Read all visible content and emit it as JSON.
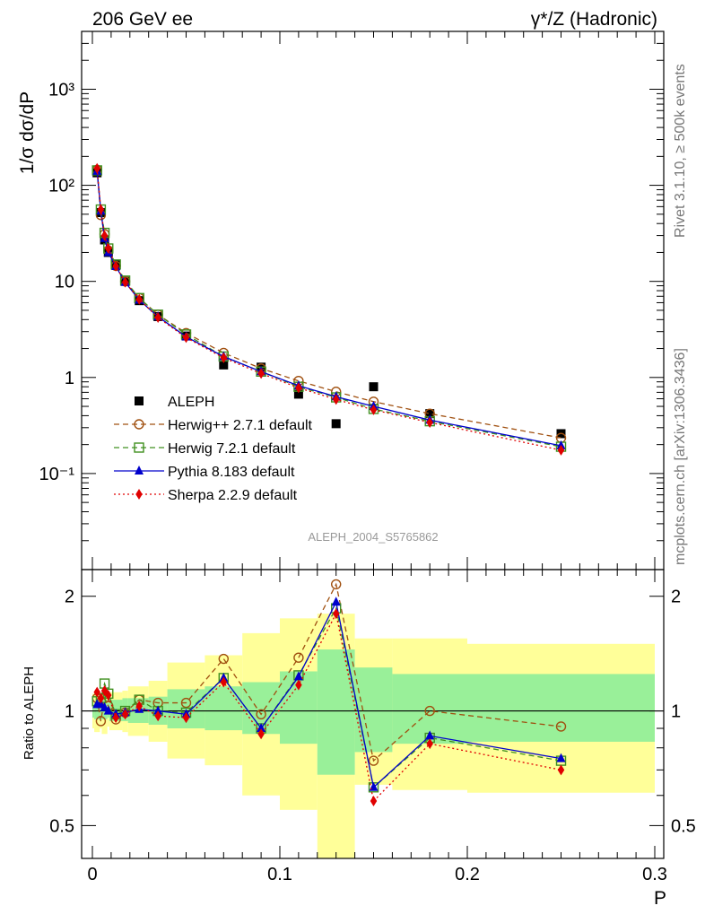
{
  "header": {
    "left": "206 GeV ee",
    "right": "γ*/Z (Hadronic)"
  },
  "side_labels": {
    "rivet": "Rivet 3.1.10, ≥ 500k events",
    "mcplots": "mcplots.cern.ch [arXiv:1306.3436]"
  },
  "analysis_id": "ALEPH_2004_S5765862",
  "chart_data": [
    {
      "type": "scatter",
      "ylabel": "1/σ  dσ/dP",
      "yscale": "log",
      "ylim": [
        0.01,
        4000
      ],
      "xlim": [
        -0.005,
        0.3
      ],
      "ytick_labels": [
        "10⁻¹",
        "1",
        "10",
        "10²",
        "10³"
      ],
      "legend_position": "center-left",
      "x": [
        0.0025,
        0.0045,
        0.0065,
        0.0085,
        0.0125,
        0.0175,
        0.025,
        0.035,
        0.05,
        0.07,
        0.09,
        0.11,
        0.13,
        0.15,
        0.18,
        0.25
      ],
      "series": [
        {
          "name": "ALEPH",
          "color": "#000000",
          "marker": "square",
          "values": [
            135,
            52,
            27,
            20,
            15,
            10,
            6.3,
            4.3,
            2.7,
            1.35,
            1.28,
            0.67,
            0.33,
            0.8,
            0.42,
            0.26
          ]
        },
        {
          "name": "Herwig++ 2.7.1 default",
          "color": "#a05010",
          "marker": "circle-open",
          "dash": "6,4",
          "values": [
            145,
            49,
            31,
            21,
            14.5,
            10,
            6.7,
            4.5,
            2.9,
            1.8,
            1.24,
            0.92,
            0.71,
            0.56,
            0.42,
            0.235
          ]
        },
        {
          "name": "Herwig 7.2.1 default",
          "color": "#409020",
          "marker": "square-open",
          "dash": "6,4",
          "values": [
            143,
            56,
            32,
            22,
            15,
            10.2,
            6.7,
            4.5,
            2.8,
            1.65,
            1.15,
            0.8,
            0.62,
            0.47,
            0.35,
            0.19
          ]
        },
        {
          "name": "Pythia 8.183 default",
          "color": "#0000cc",
          "marker": "triangle",
          "dash": "",
          "values": [
            140,
            54,
            28,
            20,
            14.3,
            9.8,
            6.4,
            4.3,
            2.65,
            1.65,
            1.15,
            0.82,
            0.63,
            0.5,
            0.36,
            0.195
          ]
        },
        {
          "name": "Sherpa 2.2.9 default",
          "color": "#e00000",
          "marker": "diamond",
          "dash": "2,3",
          "values": [
            150,
            56,
            30,
            22,
            14.4,
            9.8,
            6.5,
            4.2,
            2.6,
            1.6,
            1.1,
            0.78,
            0.59,
            0.46,
            0.34,
            0.175
          ]
        }
      ]
    },
    {
      "type": "line",
      "ylabel": "Ratio to ALEPH",
      "yscale": "log",
      "ylim": [
        0.41,
        2.35
      ],
      "xlim": [
        -0.005,
        0.3
      ],
      "xlabel": "P",
      "xtick_labels": [
        "0",
        "0.1",
        "0.2",
        "0.3"
      ],
      "ytick_labels": [
        "0.5",
        "1",
        "2"
      ],
      "reference_line": 1,
      "uncertainty_bands": {
        "bins": [
          0.0,
          0.001,
          0.004,
          0.005,
          0.008,
          0.009,
          0.016,
          0.019,
          0.03,
          0.04,
          0.06,
          0.08,
          0.1,
          0.12,
          0.14,
          0.16,
          0.2,
          0.3
        ],
        "inner_color": "#99f099",
        "outer_color": "#ffff99",
        "inner": [
          [
            0.96,
            1.04
          ],
          [
            0.95,
            1.06
          ],
          [
            0.95,
            1.07
          ],
          [
            0.95,
            1.07
          ],
          [
            0.96,
            1.05
          ],
          [
            0.94,
            1.07
          ],
          [
            0.94,
            1.08
          ],
          [
            0.93,
            1.08
          ],
          [
            0.92,
            1.09
          ],
          [
            0.9,
            1.14
          ],
          [
            0.89,
            1.16
          ],
          [
            0.87,
            1.19
          ],
          [
            0.82,
            1.27
          ],
          [
            0.68,
            1.45
          ],
          [
            0.78,
            1.3
          ],
          [
            0.82,
            1.25
          ],
          [
            0.83,
            1.25
          ]
        ],
        "outer": [
          [
            0.9,
            1.11
          ],
          [
            0.88,
            1.13
          ],
          [
            0.9,
            1.11
          ],
          [
            0.87,
            1.14
          ],
          [
            0.91,
            1.09
          ],
          [
            0.89,
            1.12
          ],
          [
            0.88,
            1.13
          ],
          [
            0.86,
            1.16
          ],
          [
            0.83,
            1.2
          ],
          [
            0.75,
            1.34
          ],
          [
            0.72,
            1.4
          ],
          [
            0.6,
            1.6
          ],
          [
            0.55,
            1.75
          ],
          [
            0.35,
            1.8
          ],
          [
            0.64,
            1.55
          ],
          [
            0.62,
            1.55
          ],
          [
            0.61,
            1.5
          ]
        ]
      },
      "x": [
        0.0025,
        0.0045,
        0.0065,
        0.0085,
        0.0125,
        0.0175,
        0.025,
        0.035,
        0.05,
        0.07,
        0.09,
        0.11,
        0.13,
        0.15,
        0.18,
        0.25
      ],
      "series": [
        {
          "name": "Herwig++ 2.7.1 default",
          "color": "#a05010",
          "marker": "circle-open",
          "dash": "6,4",
          "values": [
            1.08,
            0.94,
            1.08,
            1.03,
            0.95,
            0.99,
            1.07,
            1.05,
            1.05,
            1.37,
            0.98,
            1.38,
            2.15,
            0.74,
            1.0,
            0.91
          ]
        },
        {
          "name": "Herwig 7.2.1 default",
          "color": "#409020",
          "marker": "square-open",
          "dash": "6,4",
          "values": [
            1.06,
            1.08,
            1.18,
            1.11,
            0.98,
            1.0,
            1.07,
            1.0,
            0.99,
            1.22,
            0.9,
            1.24,
            1.86,
            0.63,
            0.85,
            0.74
          ]
        },
        {
          "name": "Pythia 8.183 default",
          "color": "#0000cc",
          "marker": "triangle",
          "dash": "",
          "values": [
            1.04,
            1.04,
            1.02,
            1.0,
            0.98,
            0.99,
            1.01,
            1.0,
            0.98,
            1.22,
            0.9,
            1.23,
            1.93,
            0.63,
            0.86,
            0.75
          ]
        },
        {
          "name": "Sherpa 2.2.9 default",
          "color": "#e00000",
          "marker": "diamond",
          "dash": "2,3",
          "values": [
            1.12,
            1.08,
            1.13,
            1.1,
            0.96,
            0.98,
            1.03,
            0.97,
            0.96,
            1.19,
            0.87,
            1.17,
            1.8,
            0.58,
            0.82,
            0.7
          ]
        }
      ]
    }
  ]
}
